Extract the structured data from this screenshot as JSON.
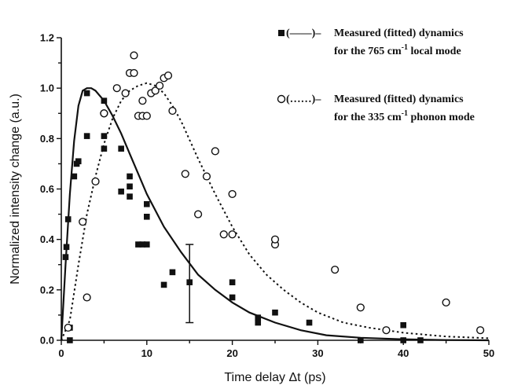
{
  "chart_data": {
    "type": "scatter",
    "xlabel": "Time delay Δt (ps)",
    "ylabel": "Normalized intensity change (a.u.)",
    "xlim": [
      0,
      50
    ],
    "ylim": [
      0,
      1.2
    ],
    "x_ticks": [
      "0",
      "10",
      "20",
      "30",
      "40",
      "50"
    ],
    "y_ticks": [
      "0.0",
      "0.2",
      "0.4",
      "0.6",
      "0.8",
      "1.0",
      "1.2"
    ],
    "grid": false,
    "legend_position": "top-right",
    "series": [
      {
        "name": "Measured (fitted) dynamics for the 765 cm⁻¹ local mode",
        "legend_marker": "■(——)–",
        "legend_line1": "Measured (fitted) dynamics",
        "legend_line2_pre": "for the 765 cm",
        "legend_sup": "-1",
        "legend_line2_post": " local mode",
        "marker": "filled-square",
        "fit_style": "solid",
        "points": [
          [
            0.5,
            0.33
          ],
          [
            0.6,
            0.37
          ],
          [
            0.8,
            0.48
          ],
          [
            1.0,
            0.05
          ],
          [
            1.0,
            0.0
          ],
          [
            1.5,
            0.65
          ],
          [
            1.8,
            0.7
          ],
          [
            2.0,
            0.71
          ],
          [
            3.0,
            0.81
          ],
          [
            3.0,
            0.98
          ],
          [
            5.0,
            0.95
          ],
          [
            5.0,
            0.76
          ],
          [
            5.0,
            0.81
          ],
          [
            7.0,
            0.76
          ],
          [
            7.0,
            0.59
          ],
          [
            8.0,
            0.57
          ],
          [
            8.0,
            0.65
          ],
          [
            8.0,
            0.61
          ],
          [
            9.0,
            0.38
          ],
          [
            9.5,
            0.38
          ],
          [
            10.0,
            0.38
          ],
          [
            10.0,
            0.49
          ],
          [
            10.0,
            0.54
          ],
          [
            12.0,
            0.22
          ],
          [
            13.0,
            0.27
          ],
          [
            15.0,
            0.23
          ],
          [
            20.0,
            0.23
          ],
          [
            20.0,
            0.17
          ],
          [
            23.0,
            0.09
          ],
          [
            23.0,
            0.07
          ],
          [
            25.0,
            0.11
          ],
          [
            29.0,
            0.07
          ],
          [
            35.0,
            0.0
          ],
          [
            40.0,
            0.06
          ],
          [
            40.0,
            0.0
          ],
          [
            42.0,
            0.0
          ]
        ],
        "error_bar": {
          "x": 15.0,
          "y_low": 0.07,
          "y_high": 0.38
        },
        "fit": [
          [
            0.0,
            0.0
          ],
          [
            0.5,
            0.3
          ],
          [
            1.0,
            0.58
          ],
          [
            1.5,
            0.79
          ],
          [
            2.0,
            0.93
          ],
          [
            2.5,
            0.99
          ],
          [
            3.0,
            1.0
          ],
          [
            3.5,
            1.0
          ],
          [
            4.0,
            0.99
          ],
          [
            5.0,
            0.95
          ],
          [
            6.0,
            0.89
          ],
          [
            7.0,
            0.82
          ],
          [
            8.0,
            0.74
          ],
          [
            9.0,
            0.66
          ],
          [
            10.0,
            0.58
          ],
          [
            12.0,
            0.45
          ],
          [
            14.0,
            0.35
          ],
          [
            16.0,
            0.26
          ],
          [
            18.0,
            0.2
          ],
          [
            20.0,
            0.15
          ],
          [
            22.0,
            0.11
          ],
          [
            25.0,
            0.07
          ],
          [
            28.0,
            0.04
          ],
          [
            31.0,
            0.02
          ],
          [
            35.0,
            0.01
          ],
          [
            40.0,
            0.004
          ],
          [
            45.0,
            0.001
          ],
          [
            50.0,
            0.0
          ]
        ]
      },
      {
        "name": "Measured (fitted) dynamics for the 335 cm⁻¹ phonon mode",
        "legend_marker": "O(……)–",
        "legend_line1": "Measured (fitted) dynamics",
        "legend_line2_pre": "for the 335 cm",
        "legend_sup": "-1",
        "legend_line2_post": " phonon mode",
        "marker": "open-circle",
        "fit_style": "dotted",
        "points": [
          [
            0.8,
            0.05
          ],
          [
            2.5,
            0.47
          ],
          [
            3.0,
            0.17
          ],
          [
            4.0,
            0.63
          ],
          [
            5.0,
            0.9
          ],
          [
            5.0,
            0.9
          ],
          [
            6.5,
            1.0
          ],
          [
            7.5,
            0.98
          ],
          [
            8.0,
            1.06
          ],
          [
            8.5,
            1.06
          ],
          [
            8.5,
            1.13
          ],
          [
            9.0,
            0.89
          ],
          [
            9.5,
            0.95
          ],
          [
            9.5,
            0.89
          ],
          [
            10.0,
            0.89
          ],
          [
            10.5,
            0.98
          ],
          [
            11.0,
            0.99
          ],
          [
            11.5,
            1.01
          ],
          [
            12.0,
            1.04
          ],
          [
            12.5,
            1.05
          ],
          [
            13.0,
            0.91
          ],
          [
            14.5,
            0.66
          ],
          [
            16.0,
            0.5
          ],
          [
            17.0,
            0.65
          ],
          [
            18.0,
            0.75
          ],
          [
            19.0,
            0.42
          ],
          [
            20.0,
            0.58
          ],
          [
            20.0,
            0.42
          ],
          [
            25.0,
            0.38
          ],
          [
            25.0,
            0.4
          ],
          [
            32.0,
            0.28
          ],
          [
            35.0,
            0.13
          ],
          [
            38.0,
            0.04
          ],
          [
            45.0,
            0.15
          ],
          [
            49.0,
            0.04
          ]
        ],
        "fit": [
          [
            0.0,
            0.0
          ],
          [
            1.0,
            0.08
          ],
          [
            2.0,
            0.3
          ],
          [
            3.0,
            0.5
          ],
          [
            4.0,
            0.65
          ],
          [
            5.0,
            0.78
          ],
          [
            6.0,
            0.88
          ],
          [
            7.0,
            0.95
          ],
          [
            8.0,
            0.99
          ],
          [
            9.0,
            1.01
          ],
          [
            10.0,
            1.02
          ],
          [
            11.0,
            1.01
          ],
          [
            12.0,
            0.98
          ],
          [
            13.0,
            0.93
          ],
          [
            14.0,
            0.87
          ],
          [
            16.0,
            0.72
          ],
          [
            18.0,
            0.58
          ],
          [
            20.0,
            0.45
          ],
          [
            22.0,
            0.34
          ],
          [
            24.0,
            0.26
          ],
          [
            26.0,
            0.2
          ],
          [
            28.0,
            0.15
          ],
          [
            30.0,
            0.11
          ],
          [
            33.0,
            0.07
          ],
          [
            36.0,
            0.05
          ],
          [
            40.0,
            0.03
          ],
          [
            45.0,
            0.015
          ],
          [
            50.0,
            0.008
          ]
        ]
      }
    ]
  }
}
